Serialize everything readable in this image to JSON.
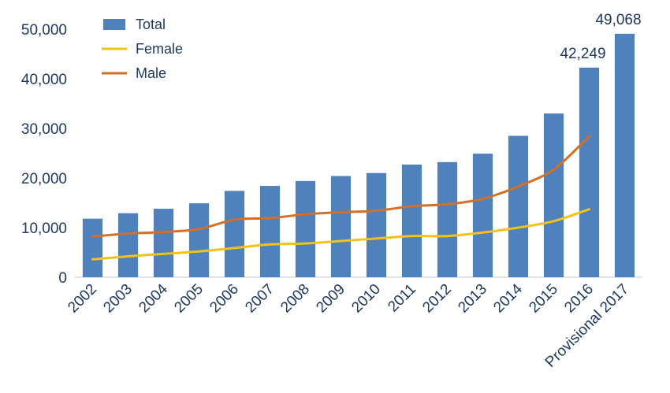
{
  "chart_data": {
    "type": "bar",
    "categories": [
      "2002",
      "2003",
      "2004",
      "2005",
      "2006",
      "2007",
      "2008",
      "2009",
      "2010",
      "2011",
      "2012",
      "2013",
      "2014",
      "2015",
      "2016",
      "Provisional 2017"
    ],
    "series": [
      {
        "name": "Total",
        "type": "bar",
        "color": "#4f81bd",
        "values": [
          11800,
          12900,
          13800,
          14900,
          17400,
          18400,
          19400,
          20400,
          21000,
          22700,
          23200,
          24900,
          28500,
          33000,
          42249,
          49068
        ]
      },
      {
        "name": "Female",
        "type": "line",
        "color": "#f2c314",
        "values": [
          3600,
          4200,
          4700,
          5200,
          5900,
          6600,
          6800,
          7300,
          7800,
          8300,
          8300,
          9000,
          10000,
          11300,
          13700,
          null
        ]
      },
      {
        "name": "Male",
        "type": "line",
        "color": "#d46f27",
        "values": [
          8200,
          8800,
          9100,
          9700,
          11600,
          11900,
          12700,
          13100,
          13400,
          14300,
          14700,
          15800,
          18300,
          21700,
          28400,
          null
        ]
      }
    ],
    "data_labels": [
      {
        "category": "2016",
        "text": "42,249"
      },
      {
        "category": "Provisional 2017",
        "text": "49,068"
      }
    ],
    "y_ticks": [
      "0",
      "10,000",
      "20,000",
      "30,000",
      "40,000",
      "50,000"
    ],
    "ylim": [
      0,
      50000
    ],
    "grid": false,
    "legend_position": "top-left",
    "axis_color": "#d9d9d9",
    "text_color": "#1f3864"
  }
}
